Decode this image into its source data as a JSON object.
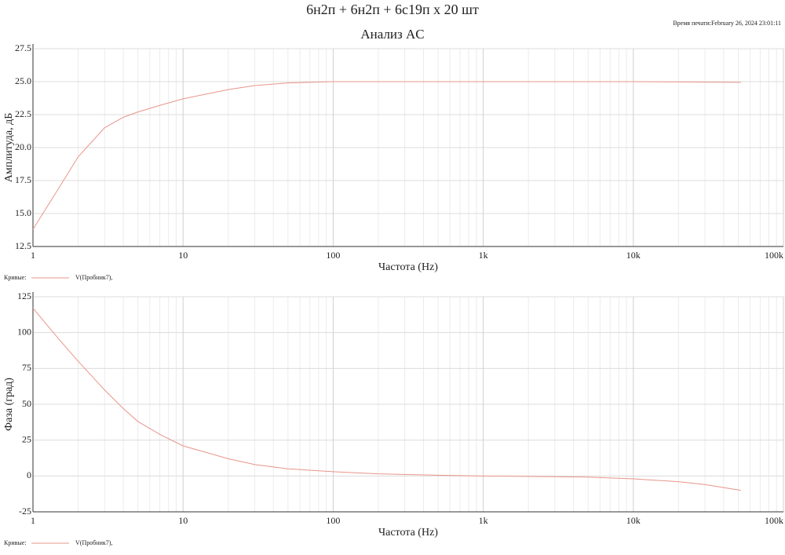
{
  "title": "6н2п + 6н2п + 6с19п x 20 шт",
  "print_time": "Время печати:February 26, 2024 23:01:11",
  "subtitle": "Анализ AC",
  "chart_data": [
    {
      "type": "line",
      "xlabel": "Частота (Hz)",
      "ylabel": "Амплитуда, дБ",
      "log_x": true,
      "grid": true,
      "legend_title": "Кривые:",
      "xlim": [
        1,
        100000
      ],
      "xticks": [
        1,
        10,
        100,
        {
          "value": 1000,
          "label": "1k"
        },
        {
          "value": 10000,
          "label": "10k"
        },
        {
          "value": 100000,
          "label": "100k"
        }
      ],
      "ylim": [
        12.5,
        27.5
      ],
      "yticks": [
        12.5,
        {
          "value": 15,
          "label": "15.0"
        },
        17.5,
        {
          "value": 20,
          "label": "20.0"
        },
        22.5,
        {
          "value": 25,
          "label": "25.0"
        },
        27.5
      ],
      "x": [
        1,
        1.5,
        2,
        3,
        4,
        5,
        7,
        10,
        20,
        30,
        50,
        100,
        1000,
        10000,
        52000
      ],
      "series": [
        {
          "name": "V(Пробник7),",
          "color": "#e8958a",
          "values": [
            13.8,
            17,
            19.3,
            21.5,
            22.3,
            22.7,
            23.2,
            23.7,
            24.4,
            24.7,
            24.9,
            25.0,
            25.0,
            25.0,
            24.95
          ]
        }
      ]
    },
    {
      "type": "line",
      "xlabel": "Частота (Hz)",
      "ylabel": "Фаза (град)",
      "log_x": true,
      "grid": true,
      "legend_title": "Кривые:",
      "xlim": [
        1,
        100000
      ],
      "xticks": [
        1,
        10,
        100,
        {
          "value": 1000,
          "label": "1k"
        },
        {
          "value": 10000,
          "label": "10k"
        },
        {
          "value": 100000,
          "label": "100k"
        }
      ],
      "ylim": [
        -25,
        125
      ],
      "yticks": [
        -25,
        0,
        25,
        50,
        75,
        100,
        125
      ],
      "x": [
        1,
        1.5,
        2,
        3,
        4,
        5,
        7,
        10,
        20,
        30,
        50,
        100,
        200,
        500,
        1000,
        2000,
        5000,
        10000,
        20000,
        30000,
        52000
      ],
      "series": [
        {
          "name": "V(Пробник7),",
          "color": "#e8958a",
          "values": [
            117,
            95,
            80,
            60,
            47,
            38,
            29,
            21,
            12,
            8,
            5,
            3,
            1.5,
            0.5,
            0,
            -0.3,
            -0.8,
            -2,
            -4,
            -6,
            -10
          ]
        }
      ]
    }
  ]
}
